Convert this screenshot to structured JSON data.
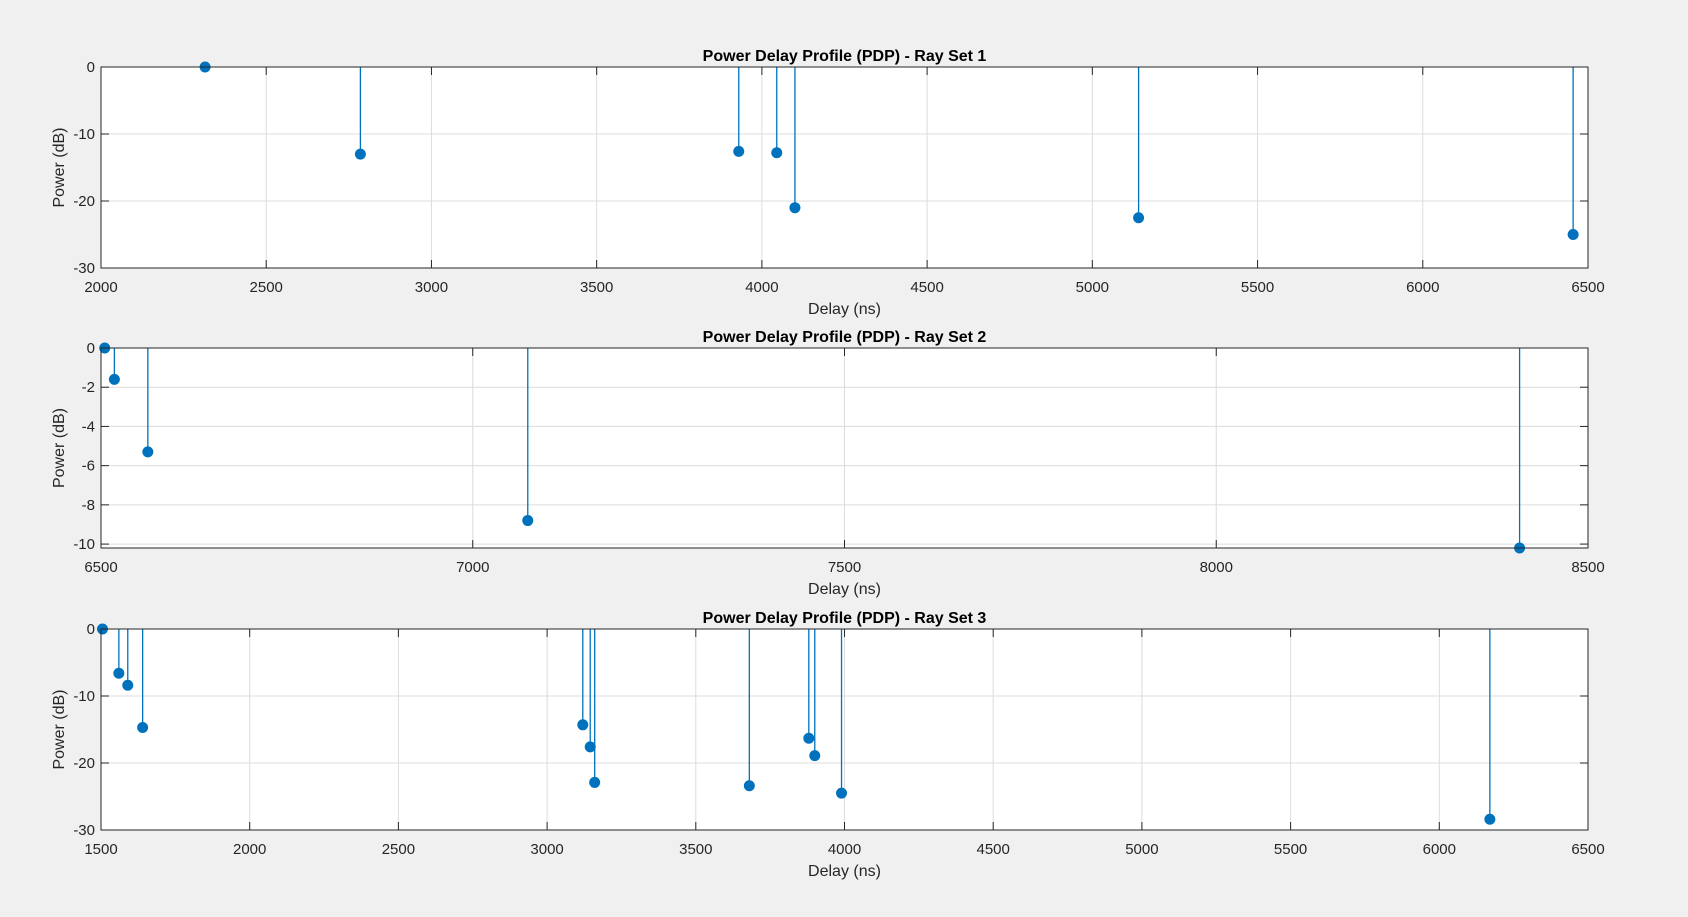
{
  "figure": {
    "background": "#f0f0f0",
    "series_color": "#0072bd"
  },
  "chart_data": [
    {
      "type": "stem",
      "title": "Power Delay Profile (PDP) - Ray Set 1",
      "xlabel": "Delay (ns)",
      "ylabel": "Power (dB)",
      "xlim": [
        2000,
        6500
      ],
      "ylim": [
        -30,
        0
      ],
      "xticks": [
        2000,
        2500,
        3000,
        3500,
        4000,
        4500,
        5000,
        5500,
        6000,
        6500
      ],
      "yticks": [
        -30,
        -20,
        -10,
        0
      ],
      "grid": true,
      "x": [
        2315,
        2785,
        3930,
        4045,
        4100,
        5140,
        6455
      ],
      "y": [
        0,
        -13.0,
        -12.6,
        -12.8,
        -21.0,
        -22.5,
        -25.0
      ]
    },
    {
      "type": "stem",
      "title": "Power Delay Profile (PDP) - Ray Set 2",
      "xlabel": "Delay (ns)",
      "ylabel": "Power (dB)",
      "xlim": [
        6500,
        8500
      ],
      "ylim": [
        -10.2,
        0
      ],
      "xticks": [
        6500,
        7000,
        7500,
        8000,
        8500
      ],
      "yticks": [
        -10,
        -8,
        -6,
        -4,
        -2,
        0
      ],
      "grid": true,
      "x": [
        6505,
        6518,
        6563,
        7074,
        8408
      ],
      "y": [
        0,
        -1.6,
        -5.3,
        -8.8,
        -10.2
      ]
    },
    {
      "type": "stem",
      "title": "Power Delay Profile (PDP) - Ray Set 3",
      "xlabel": "Delay (ns)",
      "ylabel": "Power (dB)",
      "xlim": [
        1500,
        6500
      ],
      "ylim": [
        -30,
        0
      ],
      "xticks": [
        1500,
        2000,
        2500,
        3000,
        3500,
        4000,
        4500,
        5000,
        5500,
        6000,
        6500
      ],
      "yticks": [
        -30,
        -20,
        -10,
        0
      ],
      "grid": true,
      "x": [
        1505,
        1560,
        1590,
        1640,
        3120,
        3145,
        3160,
        3680,
        3880,
        3900,
        3990,
        6170
      ],
      "y": [
        0,
        -6.6,
        -8.4,
        -14.7,
        -14.3,
        -17.6,
        -22.9,
        -23.4,
        -16.3,
        -18.9,
        -24.5,
        -28.4
      ]
    }
  ]
}
